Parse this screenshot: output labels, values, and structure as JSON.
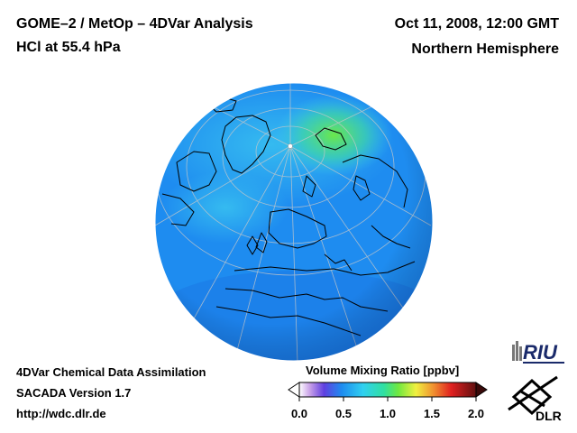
{
  "header": {
    "title_line1": "GOME–2 / MetOp – 4DVar Analysis",
    "title_line2": "HCl at 55.4 hPa",
    "datetime": "Oct 11, 2008, 12:00 GMT",
    "region": "Northern Hemisphere"
  },
  "footer": {
    "line1": "4DVar Chemical Data Assimilation",
    "line2": "SACADA Version 1.7",
    "line3": "http://wdc.dlr.de"
  },
  "colorbar": {
    "label": "Volume Mixing Ratio [ppbv]",
    "ticks": [
      "0.0",
      "0.5",
      "1.0",
      "1.5",
      "2.0"
    ],
    "range": [
      0.0,
      2.0
    ]
  },
  "logos": {
    "riu_text": "RIU",
    "dlr_text": "DLR"
  },
  "colors": {
    "ocean_field": "#1e8cf0",
    "high_field": "#6be84a",
    "mid_field": "#3cc8f0",
    "coastline": "#000000",
    "grid": "#c8c8c8"
  }
}
